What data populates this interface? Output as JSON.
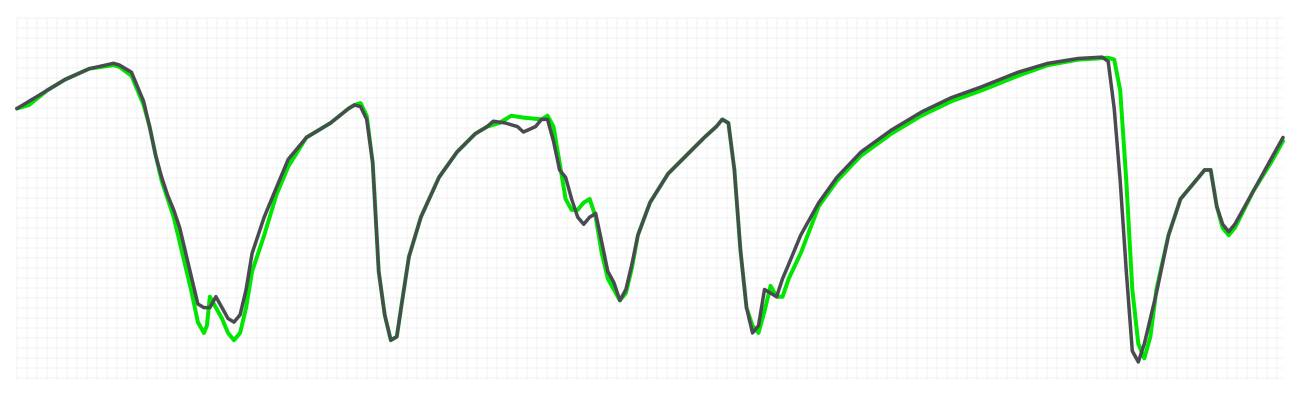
{
  "chart_data": {
    "type": "line",
    "title": "",
    "xlabel": "",
    "ylabel": "",
    "grid": true,
    "legend": "none",
    "xlim": [
      0,
      210
    ],
    "ylim": [
      0,
      100
    ],
    "series": [
      {
        "color": "#00e600",
        "points": [
          [
            0,
            75
          ],
          [
            2,
            76
          ],
          [
            5,
            80
          ],
          [
            8,
            83
          ],
          [
            12,
            86
          ],
          [
            16,
            87
          ],
          [
            17,
            86.5
          ],
          [
            19,
            84
          ],
          [
            21,
            76
          ],
          [
            22,
            70
          ],
          [
            23,
            62
          ],
          [
            24,
            55
          ],
          [
            25,
            50
          ],
          [
            26,
            45
          ],
          [
            27,
            38
          ],
          [
            28,
            31
          ],
          [
            29,
            24
          ],
          [
            30,
            16
          ],
          [
            31,
            13
          ],
          [
            31.5,
            15
          ],
          [
            32,
            23
          ],
          [
            33,
            20
          ],
          [
            34,
            17
          ],
          [
            35,
            13
          ],
          [
            36,
            11
          ],
          [
            37,
            13
          ],
          [
            38,
            20
          ],
          [
            39,
            30
          ],
          [
            41,
            40
          ],
          [
            43,
            51
          ],
          [
            45,
            59
          ],
          [
            48,
            67
          ],
          [
            52,
            71
          ],
          [
            55,
            75
          ],
          [
            56,
            76
          ],
          [
            57,
            76.5
          ],
          [
            58,
            73
          ],
          [
            59,
            60
          ],
          [
            60,
            30
          ],
          [
            61,
            18
          ],
          [
            62,
            11
          ],
          [
            63,
            12
          ],
          [
            64,
            23
          ],
          [
            65,
            34
          ],
          [
            67,
            45
          ],
          [
            70,
            56
          ],
          [
            73,
            63
          ],
          [
            76,
            68
          ],
          [
            78,
            70
          ],
          [
            80,
            71
          ],
          [
            82,
            73
          ],
          [
            84,
            72.5
          ],
          [
            87,
            72
          ],
          [
            88,
            73
          ],
          [
            89,
            70
          ],
          [
            90,
            60
          ],
          [
            91,
            50
          ],
          [
            92,
            47
          ],
          [
            93,
            47
          ],
          [
            94,
            49
          ],
          [
            95,
            50
          ],
          [
            96,
            45
          ],
          [
            97,
            35
          ],
          [
            98,
            28
          ],
          [
            99,
            25
          ],
          [
            100,
            22
          ],
          [
            101,
            24
          ],
          [
            102,
            31
          ],
          [
            103,
            40
          ],
          [
            105,
            49
          ],
          [
            108,
            57
          ],
          [
            111,
            62
          ],
          [
            114,
            67
          ],
          [
            116,
            70
          ],
          [
            117,
            72
          ],
          [
            118,
            71
          ],
          [
            119,
            58
          ],
          [
            120,
            36
          ],
          [
            121,
            20
          ],
          [
            122,
            15
          ],
          [
            123,
            13
          ],
          [
            124,
            19
          ],
          [
            125,
            26
          ],
          [
            126,
            23
          ],
          [
            127,
            23
          ],
          [
            128,
            28
          ],
          [
            130,
            35
          ],
          [
            133,
            48
          ],
          [
            136,
            55
          ],
          [
            140,
            62
          ],
          [
            145,
            68
          ],
          [
            150,
            73
          ],
          [
            155,
            77
          ],
          [
            160,
            80
          ],
          [
            166,
            84
          ],
          [
            171,
            87
          ],
          [
            176,
            88.5
          ],
          [
            181,
            89
          ],
          [
            182,
            88.5
          ],
          [
            183,
            80
          ],
          [
            184,
            55
          ],
          [
            185,
            25
          ],
          [
            186,
            10
          ],
          [
            187,
            6
          ],
          [
            188,
            12
          ],
          [
            189,
            25
          ],
          [
            191,
            40
          ],
          [
            193,
            50
          ],
          [
            196,
            56
          ],
          [
            197,
            58
          ],
          [
            198,
            58
          ],
          [
            199,
            48
          ],
          [
            200,
            42
          ],
          [
            201,
            40
          ],
          [
            202,
            42
          ],
          [
            205,
            52
          ],
          [
            208,
            60
          ],
          [
            210,
            66
          ]
        ]
      },
      {
        "color": "#4a4a52",
        "points": [
          [
            0,
            75
          ],
          [
            2,
            77
          ],
          [
            5,
            80
          ],
          [
            8,
            83
          ],
          [
            12,
            86
          ],
          [
            16,
            87.5
          ],
          [
            17,
            87
          ],
          [
            19,
            85
          ],
          [
            21,
            77
          ],
          [
            22,
            70
          ],
          [
            23,
            62
          ],
          [
            24,
            56
          ],
          [
            25,
            51
          ],
          [
            26,
            47
          ],
          [
            27,
            42
          ],
          [
            28,
            35
          ],
          [
            29,
            28
          ],
          [
            30,
            21
          ],
          [
            31,
            20
          ],
          [
            32,
            20
          ],
          [
            33,
            23
          ],
          [
            34,
            20
          ],
          [
            35,
            17
          ],
          [
            36,
            16
          ],
          [
            37,
            18
          ],
          [
            38,
            25
          ],
          [
            39,
            35
          ],
          [
            41,
            45
          ],
          [
            43,
            53
          ],
          [
            45,
            61
          ],
          [
            48,
            67
          ],
          [
            52,
            71
          ],
          [
            55,
            75
          ],
          [
            56,
            76
          ],
          [
            57,
            75.5
          ],
          [
            58,
            72
          ],
          [
            59,
            60
          ],
          [
            60,
            30
          ],
          [
            61,
            18
          ],
          [
            62,
            11
          ],
          [
            63,
            12
          ],
          [
            64,
            23
          ],
          [
            65,
            34
          ],
          [
            67,
            45
          ],
          [
            70,
            56
          ],
          [
            73,
            63
          ],
          [
            76,
            68
          ],
          [
            78,
            70
          ],
          [
            79,
            71.5
          ],
          [
            81,
            71
          ],
          [
            83,
            70
          ],
          [
            84,
            68.5
          ],
          [
            86,
            70
          ],
          [
            87,
            72
          ],
          [
            88,
            72
          ],
          [
            89,
            66
          ],
          [
            90,
            58
          ],
          [
            91,
            56
          ],
          [
            92,
            50
          ],
          [
            93,
            45
          ],
          [
            94,
            43
          ],
          [
            95,
            45
          ],
          [
            96,
            46
          ],
          [
            97,
            38
          ],
          [
            98,
            30
          ],
          [
            99,
            27
          ],
          [
            100,
            22
          ],
          [
            101,
            25
          ],
          [
            102,
            32
          ],
          [
            103,
            40
          ],
          [
            105,
            49
          ],
          [
            108,
            57
          ],
          [
            111,
            62
          ],
          [
            114,
            67
          ],
          [
            116,
            70
          ],
          [
            117,
            72
          ],
          [
            118,
            71
          ],
          [
            119,
            58
          ],
          [
            120,
            36
          ],
          [
            121,
            20
          ],
          [
            122,
            13
          ],
          [
            123,
            15
          ],
          [
            124,
            25
          ],
          [
            125,
            24
          ],
          [
            126,
            23
          ],
          [
            127,
            28
          ],
          [
            128,
            32
          ],
          [
            130,
            40
          ],
          [
            133,
            49
          ],
          [
            136,
            56
          ],
          [
            140,
            63
          ],
          [
            145,
            69
          ],
          [
            150,
            74
          ],
          [
            155,
            78
          ],
          [
            160,
            81
          ],
          [
            166,
            85
          ],
          [
            171,
            87.5
          ],
          [
            176,
            88.8
          ],
          [
            180,
            89.2
          ],
          [
            181,
            88
          ],
          [
            182,
            75
          ],
          [
            183,
            55
          ],
          [
            184,
            30
          ],
          [
            185,
            8
          ],
          [
            186,
            5
          ],
          [
            187,
            10
          ],
          [
            189,
            24
          ],
          [
            191,
            40
          ],
          [
            193,
            50
          ],
          [
            196,
            56
          ],
          [
            197,
            58
          ],
          [
            198,
            58
          ],
          [
            199,
            48
          ],
          [
            200,
            43
          ],
          [
            201,
            41
          ],
          [
            202,
            43
          ],
          [
            205,
            52
          ],
          [
            208,
            61
          ],
          [
            210,
            67
          ]
        ]
      }
    ]
  }
}
